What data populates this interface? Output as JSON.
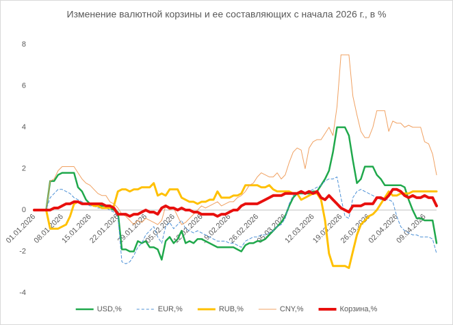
{
  "chart_data": {
    "type": "line",
    "title": "Изменение валютной корзины и ее составляющих с начала 2026 г., в %",
    "categories": [
      "01.01.2026",
      null,
      null,
      null,
      null,
      null,
      null,
      "08.01.2026",
      null,
      null,
      null,
      null,
      null,
      null,
      "15.01.2026",
      null,
      null,
      null,
      null,
      null,
      null,
      "22.01.2026",
      null,
      null,
      null,
      null,
      null,
      null,
      "29.01.2026",
      null,
      null,
      null,
      null,
      null,
      null,
      "05.02.2026",
      null,
      null,
      null,
      null,
      null,
      null,
      "12.02.2026",
      null,
      null,
      null,
      null,
      null,
      null,
      "19.02.2026",
      null,
      null,
      null,
      null,
      null,
      null,
      "26.02.2026",
      null,
      null,
      null,
      null,
      null,
      null,
      "05.03.2026",
      null,
      null,
      null,
      null,
      null,
      null,
      "12.03.2026",
      null,
      null,
      null,
      null,
      null,
      null,
      "19.03.2026",
      null,
      null,
      null,
      null,
      null,
      null,
      "26.03.2026",
      null,
      null,
      null,
      null,
      null,
      null,
      "02.04.2026",
      null,
      null,
      null,
      null,
      null,
      null,
      "09.04.2026",
      null,
      null,
      null
    ],
    "ylim": [
      -4,
      8
    ],
    "yticks": [
      -4,
      -2,
      0,
      2,
      4,
      6,
      8
    ],
    "grid": false,
    "legend": "bottom",
    "series": [
      {
        "name": "USD,%",
        "color": "#1fa84b",
        "line_width": 2.5,
        "dashed": false,
        "values": [
          0,
          0,
          0,
          0,
          1.4,
          1.4,
          1.7,
          1.8,
          1.8,
          1.8,
          1.8,
          1.1,
          0.9,
          0.5,
          0.3,
          0.2,
          0.2,
          0.2,
          0.2,
          0.1,
          0,
          -0.1,
          -1.9,
          -1.9,
          -2.0,
          -2.0,
          -1.5,
          -1.6,
          -1.5,
          -1.8,
          -1.8,
          -1.9,
          -2.4,
          -1.5,
          -1.3,
          -1.6,
          -1.4,
          -1.0,
          -1.6,
          -1.5,
          -1.6,
          -1.4,
          -1.4,
          -1.5,
          -1.6,
          -1.7,
          -1.8,
          -1.8,
          -1.8,
          -1.8,
          -1.8,
          -1.9,
          -2.0,
          -1.7,
          -1.6,
          -1.6,
          -1.5,
          -1.5,
          -1.4,
          -1.2,
          -1.0,
          -0.8,
          -0.6,
          -0.3,
          0.2,
          0.6,
          0.8,
          0.8,
          0.8,
          0.8,
          0.9,
          0.9,
          1.2,
          1.5,
          1.9,
          2.8,
          4.0,
          4.0,
          4.0,
          3.6,
          2.4,
          1.3,
          1.5,
          2.1,
          2.1,
          2.1,
          1.7,
          1.5,
          1.2,
          1.2,
          1.2,
          1.2,
          1.2,
          1.1,
          0.5,
          0,
          -0.4,
          -0.4,
          -0.5,
          -0.5,
          -0.5,
          -1.6
        ]
      },
      {
        "name": "EUR,%",
        "color": "#4a8fd6",
        "line_width": 1,
        "dashed": true,
        "values": [
          0,
          0,
          0,
          0,
          0.6,
          0.8,
          1.0,
          1.0,
          0.9,
          0.8,
          0.6,
          0.5,
          0.4,
          0.3,
          0.2,
          0.2,
          0.1,
          0.1,
          0.1,
          0,
          -0.1,
          -0.3,
          -2.5,
          -2.6,
          -2.5,
          -2.2,
          -1.8,
          -1.6,
          -1.2,
          -1.0,
          -0.8,
          -1.3,
          -1.6,
          -0.8,
          -0.6,
          -0.9,
          -0.7,
          -0.5,
          -0.9,
          -1.0,
          -1.1,
          -1.0,
          -1.1,
          -1.2,
          -1.3,
          -1.4,
          -1.5,
          -1.5,
          -1.5,
          -1.6,
          -1.6,
          -1.7,
          -1.8,
          -1.5,
          -1.4,
          -1.3,
          -1.3,
          -1.2,
          -1.2,
          -1.1,
          -1.0,
          -0.8,
          -0.7,
          -0.4,
          0.3,
          0.7,
          0.8,
          0.8,
          0.8,
          0.9,
          1.0,
          1.1,
          1.2,
          1.4,
          1.5,
          1.5,
          1.6,
          0.6,
          -0.3,
          -0.4,
          0.6,
          0.9,
          1.0,
          0.9,
          0.8,
          0.7,
          0.6,
          0.5,
          0.5,
          0.5,
          0.4,
          -0.3,
          -0.8,
          -1.0,
          -1.1,
          -1.2,
          -1.2,
          -1.3,
          -1.3,
          -1.3,
          -1.4,
          -2.1
        ]
      },
      {
        "name": "RUB,%",
        "color": "#ffc000",
        "line_width": 3,
        "dashed": false,
        "values": [
          0,
          0,
          0,
          0,
          -0.9,
          -0.9,
          -0.9,
          -0.8,
          -0.7,
          -0.3,
          0.3,
          0.4,
          0.3,
          0.3,
          0.3,
          0.2,
          0.2,
          0.1,
          0.1,
          0.1,
          0.2,
          0.9,
          1.0,
          1.0,
          0.9,
          1.0,
          1.0,
          1.1,
          1.1,
          1.1,
          1.3,
          0.7,
          0.8,
          0.7,
          1.0,
          1.0,
          1.0,
          0.6,
          0.5,
          0.4,
          0.4,
          0.3,
          0.4,
          0.4,
          0.5,
          0.5,
          0.9,
          0.6,
          0.6,
          0.6,
          0.7,
          0.7,
          0.8,
          1.2,
          1.2,
          1.2,
          1.2,
          1.1,
          1.1,
          1.2,
          1.0,
          0.9,
          0.9,
          0.9,
          0.9,
          0.8,
          0.8,
          0.5,
          0.6,
          0.7,
          0.8,
          0.8,
          0.5,
          -0.5,
          -2.1,
          -2.7,
          -2.7,
          -2.7,
          -2.7,
          -2.8,
          -2.0,
          -1.2,
          -0.7,
          -0.5,
          -0.3,
          -0.2,
          0,
          0.3,
          0.6,
          0.9,
          0.7,
          0.7,
          0.8,
          0.8,
          0.8,
          0.9,
          0.9,
          0.9,
          0.9,
          0.9,
          0.9,
          0.9
        ]
      },
      {
        "name": "CNY,%",
        "color": "#f0a060",
        "line_width": 1,
        "dashed": false,
        "values": [
          0,
          0,
          0,
          0,
          1.4,
          1.5,
          1.9,
          2.1,
          2.1,
          2.1,
          2.1,
          1.8,
          1.5,
          1.3,
          1.2,
          1.0,
          0.8,
          0.7,
          0.7,
          0.4,
          0.3,
          0.1,
          -0.2,
          -0.3,
          -0.5,
          -0.7,
          -0.5,
          -0.6,
          -0.4,
          -0.5,
          -0.6,
          -0.7,
          -0.5,
          0.2,
          0,
          0.1,
          -0.3,
          -0.7,
          -0.6,
          -0.4,
          -0.2,
          0,
          0.2,
          0.1,
          0.2,
          0.3,
          0.4,
          0.2,
          0.3,
          0.4,
          0.4,
          0.6,
          0.7,
          0.9,
          1.2,
          1.3,
          1.6,
          1.8,
          1.7,
          1.6,
          1.6,
          1.8,
          1.5,
          1.7,
          2.3,
          2.8,
          3.0,
          2.9,
          2.0,
          3.0,
          3.3,
          3.4,
          3.4,
          3.7,
          4.0,
          3.6,
          5.0,
          7.5,
          7.5,
          7.5,
          5.5,
          4.6,
          3.8,
          3.5,
          3.5,
          4.0,
          4.8,
          4.8,
          4.8,
          3.8,
          4.3,
          4.2,
          4.2,
          4.0,
          4.1,
          4.0,
          4.0,
          4.0,
          3.3,
          3.2,
          2.7,
          1.7
        ]
      },
      {
        "name": "Корзина,%",
        "color": "#e8100e",
        "line_width": 4,
        "dashed": false,
        "values": [
          0,
          0,
          0,
          0,
          0,
          0.1,
          0.1,
          0.2,
          0.3,
          0.3,
          0.4,
          0.4,
          0.3,
          0.3,
          0.3,
          0.3,
          0.3,
          0.3,
          0.2,
          0.2,
          0.1,
          -0.2,
          -0.2,
          -0.2,
          -0.3,
          -0.2,
          -0.2,
          -0.1,
          0,
          -0.1,
          -0.1,
          -0.2,
          0.1,
          0.2,
          0.1,
          0.1,
          0,
          0.1,
          0,
          0,
          -0.1,
          -0.1,
          -0.2,
          -0.2,
          -0.2,
          -0.2,
          -0.3,
          -0.2,
          -0.2,
          -0.1,
          0,
          0,
          0.2,
          0.3,
          0.3,
          0.3,
          0.3,
          0.4,
          0.5,
          0.6,
          0.7,
          0.7,
          0.7,
          0.8,
          0.8,
          0.8,
          0.8,
          0.9,
          0.8,
          0.9,
          0.8,
          0.9,
          0.6,
          0.5,
          0.7,
          0.5,
          0.3,
          0.1,
          0,
          -0.1,
          0.2,
          0.2,
          0.2,
          0.3,
          0.3,
          0.3,
          0.6,
          0.6,
          0.5,
          0.7,
          1.0,
          1.0,
          0.9,
          0.7,
          0.6,
          0.7,
          0.6,
          0.6,
          0.7,
          0.6,
          0.6,
          0.2
        ]
      }
    ]
  }
}
